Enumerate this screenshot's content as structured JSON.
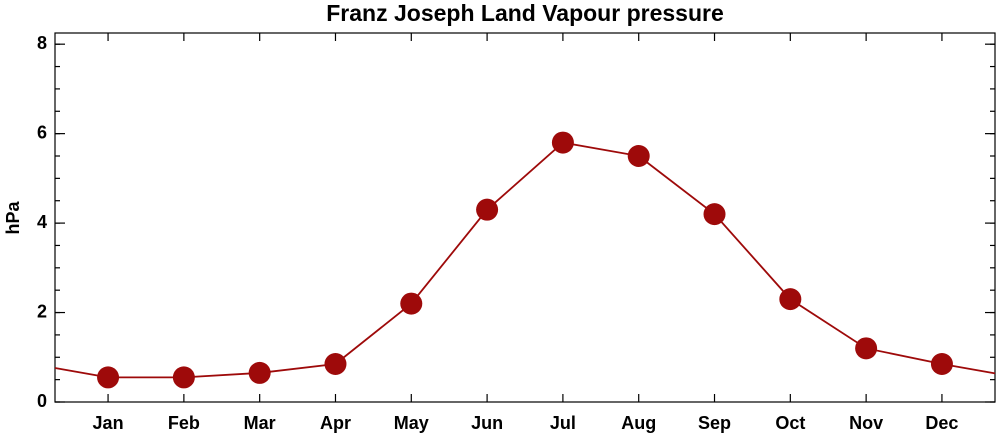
{
  "chart_data": {
    "type": "line",
    "title": "Franz Joseph Land Vapour pressure",
    "y_label": "hPa",
    "categories": [
      "Jan",
      "Feb",
      "Mar",
      "Apr",
      "May",
      "Jun",
      "Jul",
      "Aug",
      "Sep",
      "Oct",
      "Nov",
      "Dec"
    ],
    "series": [
      {
        "name": "Vapour pressure",
        "color": "#9e0a0a",
        "values": [
          0.55,
          0.55,
          0.65,
          0.85,
          2.2,
          4.3,
          5.8,
          5.5,
          4.2,
          2.3,
          1.2,
          0.85
        ]
      }
    ],
    "ylim": [
      0,
      8.25
    ],
    "yticks": [
      0,
      2,
      4,
      6,
      8
    ],
    "wrap": true
  }
}
